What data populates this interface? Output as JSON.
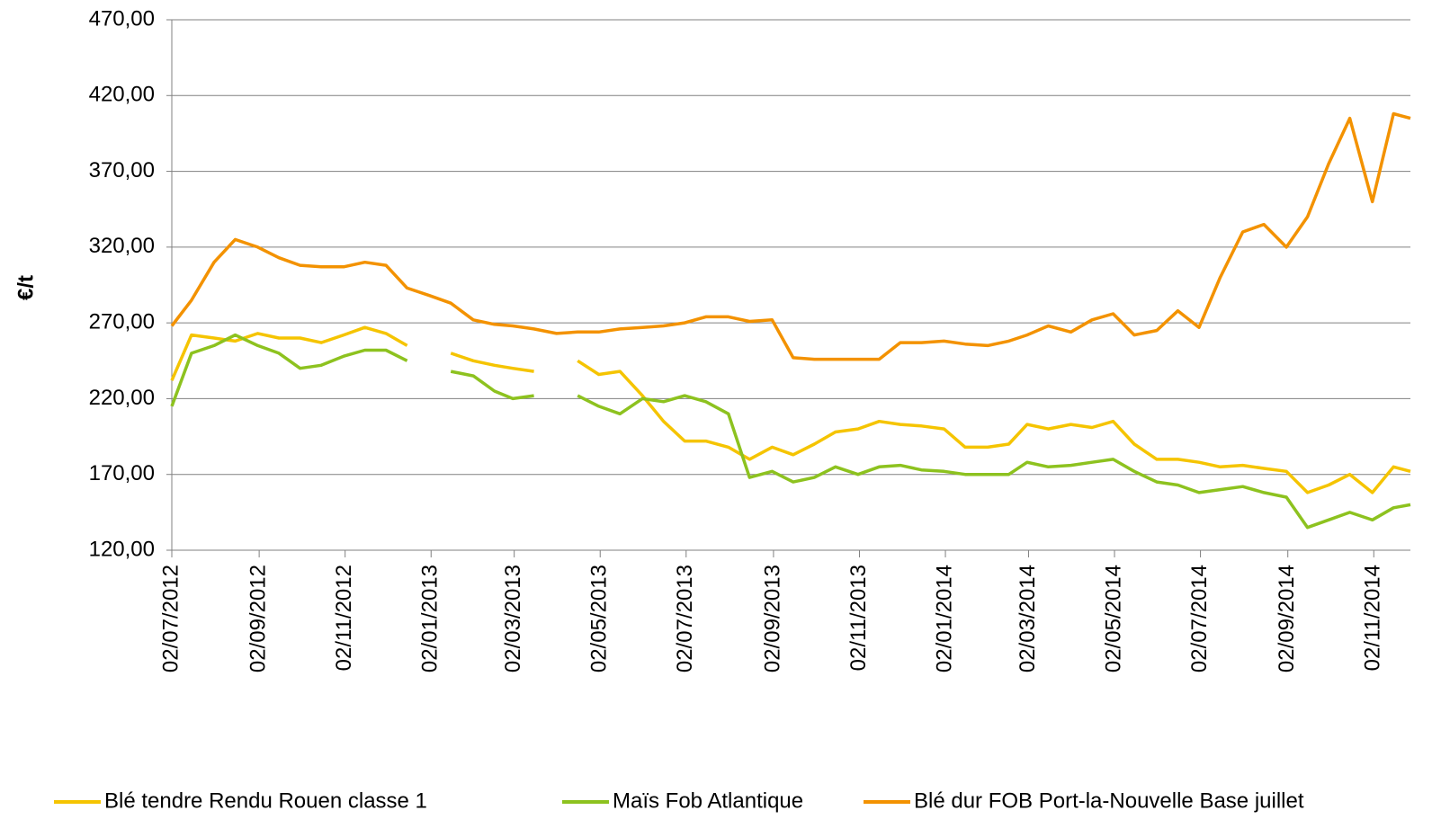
{
  "chart_data": {
    "type": "line",
    "y_label": "€/t",
    "x": [
      "02/07/2012",
      "16/07/2012",
      "01/08/2012",
      "16/08/2012",
      "01/09/2012",
      "16/09/2012",
      "01/10/2012",
      "16/10/2012",
      "01/11/2012",
      "16/11/2012",
      "01/12/2012",
      "16/12/2012",
      "01/01/2013",
      "16/01/2013",
      "01/02/2013",
      "16/02/2013",
      "01/03/2013",
      "16/03/2013",
      "01/04/2013",
      "16/04/2013",
      "01/05/2013",
      "16/05/2013",
      "01/06/2013",
      "16/06/2013",
      "01/07/2013",
      "16/07/2013",
      "01/08/2013",
      "16/08/2013",
      "01/09/2013",
      "16/09/2013",
      "01/10/2013",
      "16/10/2013",
      "01/11/2013",
      "16/11/2013",
      "01/12/2013",
      "16/12/2013",
      "01/01/2014",
      "16/01/2014",
      "01/02/2014",
      "16/02/2014",
      "01/03/2014",
      "16/03/2014",
      "01/04/2014",
      "16/04/2014",
      "01/05/2014",
      "16/05/2014",
      "01/06/2014",
      "16/06/2014",
      "01/07/2014",
      "16/07/2014",
      "01/08/2014",
      "16/08/2014",
      "01/09/2014",
      "16/09/2014",
      "01/10/2014",
      "16/10/2014",
      "01/11/2014",
      "16/11/2014",
      "28/11/2014"
    ],
    "series": [
      {
        "name": "Blé tendre Rendu Rouen classe 1",
        "color": "#f5c400",
        "values": [
          232,
          262,
          260,
          258,
          263,
          260,
          260,
          257,
          262,
          267,
          263,
          255,
          null,
          250,
          245,
          242,
          240,
          238,
          null,
          245,
          236,
          238,
          222,
          205,
          192,
          192,
          188,
          180,
          188,
          183,
          190,
          198,
          200,
          205,
          203,
          202,
          200,
          188,
          188,
          190,
          203,
          200,
          203,
          201,
          205,
          190,
          180,
          180,
          178,
          175,
          176,
          174,
          172,
          158,
          163,
          170,
          158,
          175,
          172
        ]
      },
      {
        "name": "Maïs Fob Atlantique",
        "color": "#8dc21f",
        "values": [
          215,
          250,
          255,
          262,
          255,
          250,
          240,
          242,
          248,
          252,
          252,
          245,
          null,
          238,
          235,
          225,
          220,
          222,
          null,
          222,
          215,
          210,
          220,
          218,
          222,
          218,
          210,
          168,
          172,
          165,
          168,
          175,
          170,
          175,
          176,
          173,
          172,
          170,
          170,
          170,
          178,
          175,
          176,
          178,
          180,
          172,
          165,
          163,
          158,
          160,
          162,
          158,
          155,
          135,
          140,
          145,
          140,
          148,
          150
        ]
      },
      {
        "name": "Blé dur FOB Port-la-Nouvelle Base juillet",
        "color": "#f39200",
        "values": [
          268,
          285,
          310,
          325,
          320,
          313,
          308,
          307,
          307,
          310,
          308,
          293,
          288,
          283,
          272,
          269,
          268,
          266,
          263,
          264,
          264,
          266,
          267,
          268,
          270,
          274,
          274,
          271,
          272,
          247,
          246,
          246,
          246,
          246,
          257,
          257,
          258,
          256,
          255,
          258,
          262,
          268,
          264,
          272,
          276,
          262,
          265,
          278,
          267,
          300,
          330,
          335,
          320,
          340,
          375,
          405,
          350,
          408,
          405
        ]
      }
    ],
    "xlim": [
      "02/07/2012",
      "28/11/2014"
    ],
    "xticks": [
      "02/07/2012",
      "02/09/2012",
      "02/11/2012",
      "02/01/2013",
      "02/03/2013",
      "02/05/2013",
      "02/07/2013",
      "02/09/2013",
      "02/11/2013",
      "02/01/2014",
      "02/03/2014",
      "02/05/2014",
      "02/07/2014",
      "02/09/2014",
      "02/11/2014"
    ],
    "ylim": [
      120,
      470
    ],
    "yticks": [
      {
        "value": 120,
        "label": "120,00"
      },
      {
        "value": 170,
        "label": "170,00"
      },
      {
        "value": 220,
        "label": "220,00"
      },
      {
        "value": 270,
        "label": "270,00"
      },
      {
        "value": 320,
        "label": "320,00"
      },
      {
        "value": 370,
        "label": "370,00"
      },
      {
        "value": 420,
        "label": "420,00"
      },
      {
        "value": 470,
        "label": "470,00"
      }
    ],
    "grid": true
  }
}
